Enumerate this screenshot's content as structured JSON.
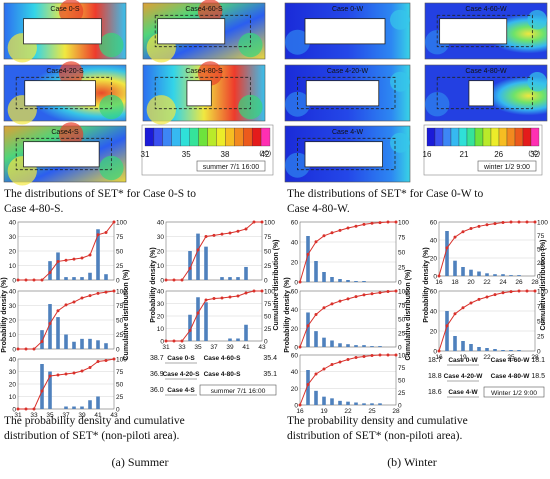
{
  "summer": {
    "contours": [
      {
        "label": "Case 0-S"
      },
      {
        "label": "Case4-60-S"
      },
      {
        "label": "Case4-20-S"
      },
      {
        "label": "Case4-80-S"
      },
      {
        "label": "Case4-S"
      }
    ],
    "colorbar": {
      "ticks": [
        "31",
        "35",
        "38",
        "42"
      ],
      "unit": "(°C)",
      "caption": "summer  7/1  16:00",
      "colors": [
        "#1b1bd8",
        "#3a4ff0",
        "#3d86f5",
        "#36b9f1",
        "#2fe0d8",
        "#35e39a",
        "#6ee33c",
        "#b9ea2a",
        "#ecec29",
        "#f6bd22",
        "#f28a1f",
        "#ec5a1c",
        "#e41b1b",
        "#ff2fb2"
      ]
    },
    "caption_contour": "The distributions of SET* for Case 0-S to Case 4-80-S.",
    "caption_prob": "The probability density and cumulative distribution of SET* (non-piloti area).",
    "side_left": {
      "values": [
        "38.7",
        "36.9",
        "36.0"
      ],
      "cases": [
        "Case 0-S",
        "Case 4-20-S",
        "Case 4-S"
      ]
    },
    "side_right": {
      "values": [
        "35.4",
        "35.1"
      ],
      "cases": [
        "Case 4-60-S",
        "Case 4-80-S"
      ]
    },
    "box_label": "summer  7/1  16:00",
    "sub": "(a) Summer"
  },
  "winter": {
    "contours": [
      {
        "label": "Case 0-W"
      },
      {
        "label": "Case 4-60-W"
      },
      {
        "label": "Case 4-20-W"
      },
      {
        "label": "Case 4-80-W"
      },
      {
        "label": "Case 4-W"
      }
    ],
    "colorbar": {
      "ticks": [
        "16",
        "21",
        "26",
        "32"
      ],
      "unit": "(°C)",
      "caption": "winter  1/2  9:00",
      "colors": [
        "#1b1bd8",
        "#3a4ff0",
        "#3d86f5",
        "#36b9f1",
        "#2fe0d8",
        "#35e39a",
        "#6ee33c",
        "#b9ea2a",
        "#ecec29",
        "#f6bd22",
        "#f28a1f",
        "#ec5a1c",
        "#e41b1b",
        "#ff2fb2"
      ]
    },
    "caption_contour": "The distributions of SET* for Case 0-W to Case 4-80-W.",
    "caption_prob": "The probability density and cumulative distribution of SET* (non-piloti area).",
    "side_left": {
      "values": [
        "18.7",
        "18.8",
        "18.6"
      ],
      "cases": [
        "Case 0-W",
        "Case 4-20-W",
        "Case 4-W"
      ]
    },
    "side_right": {
      "values": [
        "18.1",
        "18.5"
      ],
      "cases": [
        "Case 4-60-W",
        "Case 4-80-W"
      ]
    },
    "box_label": "Winter 1/2 9:00",
    "sub": "(b) Winter"
  },
  "axis_labels": {
    "density": "Probability density (%)",
    "cumulative": "Cumulative distribution (%)"
  },
  "chart_data": [
    {
      "type": "bar",
      "panel": "Case 0-S",
      "x": [
        31,
        32,
        33,
        34,
        35,
        36,
        37,
        38,
        39,
        40,
        41,
        42,
        43
      ],
      "values": [
        0,
        0,
        0,
        0,
        13,
        19,
        2,
        2,
        2,
        5,
        35,
        4,
        0
      ],
      "cumulative": [
        0,
        0,
        0,
        0,
        13,
        32,
        34,
        36,
        38,
        43,
        78,
        82,
        100
      ],
      "ylim": [
        0,
        40
      ],
      "ylim2": [
        0,
        100
      ],
      "xticks": [
        "31",
        "33",
        "35",
        "37",
        "39",
        "41",
        "43"
      ],
      "yticks": [
        "0",
        "10",
        "20",
        "30",
        "40"
      ],
      "y2ticks": [
        "0",
        "25",
        "50",
        "75",
        "100"
      ]
    },
    {
      "type": "bar",
      "panel": "Case 4-20-S",
      "x": [
        31,
        32,
        33,
        34,
        35,
        36,
        37,
        38,
        39,
        40,
        41,
        42,
        43
      ],
      "values": [
        0,
        0,
        0,
        13,
        31,
        22,
        10,
        5,
        7,
        7,
        6,
        4,
        0
      ],
      "cumulative": [
        0,
        0,
        0,
        13,
        44,
        66,
        76,
        81,
        88,
        92,
        96,
        98,
        100
      ],
      "ylim": [
        0,
        40
      ],
      "ylim2": [
        0,
        100
      ],
      "xticks": [
        "31",
        "33",
        "35",
        "37",
        "39",
        "41",
        "43"
      ],
      "yticks": [
        "0",
        "10",
        "20",
        "30",
        "40"
      ],
      "y2ticks": [
        "0",
        "25",
        "50",
        "75",
        "100"
      ]
    },
    {
      "type": "bar",
      "panel": "Case 4-S",
      "x": [
        31,
        32,
        33,
        34,
        35,
        36,
        37,
        38,
        39,
        40,
        41,
        42,
        43
      ],
      "values": [
        0,
        0,
        0,
        36,
        30,
        0,
        2,
        2,
        2,
        7,
        10,
        0,
        0
      ],
      "cumulative": [
        0,
        0,
        0,
        36,
        66,
        68,
        70,
        72,
        76,
        83,
        95,
        97,
        100
      ],
      "ylim": [
        0,
        40
      ],
      "ylim2": [
        0,
        100
      ],
      "xticks": [
        "31",
        "33",
        "35",
        "37",
        "39",
        "41",
        "43"
      ],
      "yticks": [
        "0",
        "10",
        "20",
        "30",
        "40"
      ],
      "y2ticks": [
        "0",
        "25",
        "50",
        "75",
        "100"
      ]
    },
    {
      "type": "bar",
      "panel": "Case 4-60-S",
      "x": [
        31,
        32,
        33,
        34,
        35,
        36,
        37,
        38,
        39,
        40,
        41,
        42,
        43
      ],
      "values": [
        0,
        0,
        0,
        20,
        32,
        23,
        0,
        2,
        2,
        2,
        9,
        0,
        0
      ],
      "cumulative": [
        0,
        0,
        0,
        20,
        52,
        75,
        77,
        79,
        81,
        84,
        88,
        100,
        100
      ],
      "ylim": [
        0,
        40
      ],
      "ylim2": [
        0,
        100
      ],
      "xticks": [
        "31",
        "33",
        "35",
        "37",
        "39",
        "41",
        "43"
      ],
      "yticks": [
        "0",
        "10",
        "20",
        "30",
        "40"
      ],
      "y2ticks": [
        "0",
        "25",
        "50",
        "75",
        "100"
      ]
    },
    {
      "type": "bar",
      "panel": "Case 4-80-S",
      "x": [
        31,
        32,
        33,
        34,
        35,
        36,
        37,
        38,
        39,
        40,
        41,
        42,
        43
      ],
      "values": [
        0,
        0,
        0,
        21,
        35,
        31,
        0,
        0,
        2,
        2,
        13,
        0,
        0
      ],
      "cumulative": [
        0,
        0,
        0,
        21,
        56,
        82,
        85,
        86,
        88,
        90,
        96,
        100,
        100
      ],
      "ylim": [
        0,
        40
      ],
      "ylim2": [
        0,
        100
      ],
      "xticks": [
        "31",
        "33",
        "35",
        "37",
        "39",
        "41",
        "43"
      ],
      "yticks": [
        "0",
        "10",
        "20",
        "30",
        "40"
      ],
      "y2ticks": [
        "0",
        "25",
        "50",
        "75",
        "100"
      ]
    },
    {
      "type": "bar",
      "panel": "Case 0-W",
      "x": [
        16,
        17,
        18,
        19,
        20,
        21,
        22,
        23,
        24,
        25,
        26,
        27,
        28
      ],
      "values": [
        0,
        46,
        21,
        10,
        5,
        3,
        2,
        1,
        1,
        0,
        0,
        0,
        0
      ],
      "cumulative": [
        0,
        46,
        67,
        77,
        82,
        86,
        90,
        93,
        96,
        98,
        99,
        100,
        100
      ],
      "ylim": [
        0,
        60
      ],
      "ylim2": [
        0,
        100
      ],
      "xticks": [
        "16",
        "19",
        "22",
        "25",
        "28"
      ],
      "yticks": [
        "0",
        "20",
        "40",
        "60"
      ],
      "y2ticks": [
        "0",
        "25",
        "50",
        "75",
        "100"
      ]
    },
    {
      "type": "bar",
      "panel": "Case 4-20-W",
      "x": [
        16,
        17,
        18,
        19,
        20,
        21,
        22,
        23,
        24,
        25,
        26,
        27,
        28
      ],
      "values": [
        0,
        37,
        17,
        10,
        7,
        4,
        3,
        2,
        2,
        1,
        1,
        0,
        0
      ],
      "cumulative": [
        0,
        38,
        58,
        70,
        77,
        82,
        86,
        90,
        93,
        95,
        97,
        99,
        100
      ],
      "ylim": [
        0,
        60
      ],
      "ylim2": [
        0,
        100
      ],
      "xticks": [
        "16",
        "19",
        "22",
        "25",
        "28"
      ],
      "yticks": [
        "0",
        "20",
        "40",
        "60"
      ],
      "y2ticks": [
        "0",
        "25",
        "50",
        "75",
        "100"
      ]
    },
    {
      "type": "bar",
      "panel": "Case 4-W",
      "x": [
        16,
        17,
        18,
        19,
        20,
        21,
        22,
        23,
        24,
        25,
        26,
        27,
        28
      ],
      "values": [
        0,
        42,
        17,
        10,
        8,
        5,
        4,
        3,
        2,
        2,
        2,
        0,
        0
      ],
      "cumulative": [
        0,
        41,
        62,
        72,
        81,
        86,
        91,
        95,
        97,
        99,
        100,
        100,
        100
      ],
      "ylim": [
        0,
        60
      ],
      "ylim2": [
        0,
        100
      ],
      "xticks": [
        "16",
        "19",
        "22",
        "25",
        "28"
      ],
      "yticks": [
        "0",
        "20",
        "40",
        "60"
      ],
      "y2ticks": [
        "0",
        "25",
        "50",
        "75",
        "100"
      ]
    },
    {
      "type": "bar",
      "panel": "Case 4-60-W",
      "x": [
        16,
        17,
        18,
        19,
        20,
        21,
        22,
        23,
        24,
        25,
        26,
        27,
        28
      ],
      "values": [
        0,
        50,
        17,
        10,
        7,
        5,
        3,
        2,
        2,
        1,
        1,
        0,
        0
      ],
      "cumulative": [
        0,
        52,
        72,
        82,
        88,
        92,
        95,
        97,
        99,
        100,
        100,
        100,
        100
      ],
      "ylim": [
        0,
        60
      ],
      "ylim2": [
        0,
        100
      ],
      "xticks": [
        "16",
        "18",
        "20",
        "22",
        "24",
        "26",
        "28"
      ],
      "yticks": [
        "0",
        "20",
        "40",
        "60"
      ],
      "y2ticks": [
        "0",
        "25",
        "50",
        "75",
        "100"
      ]
    },
    {
      "type": "bar",
      "panel": "Case 4-80-W",
      "x": [
        16,
        17,
        18,
        19,
        20,
        21,
        22,
        23,
        24,
        25,
        26,
        27,
        28
      ],
      "values": [
        0,
        40,
        15,
        10,
        7,
        4,
        3,
        2,
        1,
        1,
        1,
        0,
        0
      ],
      "cumulative": [
        0,
        42,
        62,
        72,
        80,
        86,
        90,
        94,
        97,
        99,
        100,
        100,
        100
      ],
      "ylim": [
        0,
        60
      ],
      "ylim2": [
        0,
        100
      ],
      "xticks": [
        "16",
        "19",
        "22",
        "25",
        "28"
      ],
      "yticks": [
        "0",
        "20",
        "40",
        "60"
      ],
      "y2ticks": [
        "0",
        "25",
        "50",
        "75",
        "100"
      ]
    }
  ]
}
